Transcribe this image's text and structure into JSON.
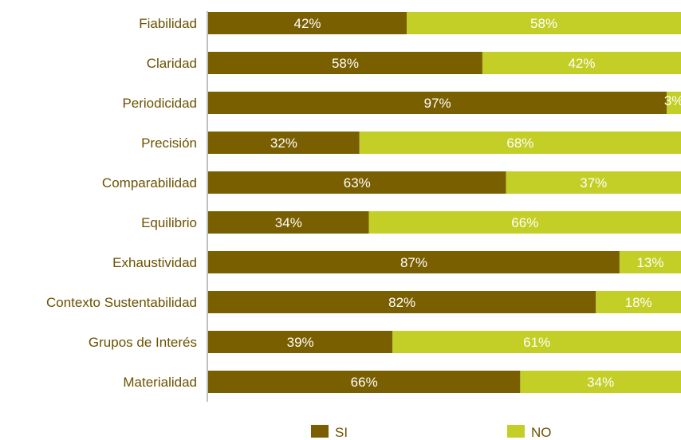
{
  "chart_data": {
    "type": "bar",
    "orientation": "horizontal",
    "stacked": true,
    "percent_stacked": true,
    "categories": [
      "Fiabilidad",
      "Claridad",
      "Periodicidad",
      "Precisión",
      "Comparabilidad",
      "Equilibrio",
      "Exhaustividad",
      "Contexto Sustentabilidad",
      "Grupos de Interés",
      "Materialidad"
    ],
    "series": [
      {
        "name": "SI",
        "color": "#7a5f00",
        "values": [
          42,
          58,
          97,
          32,
          63,
          34,
          87,
          82,
          39,
          66
        ],
        "labels": [
          "42%",
          "58%",
          "97%",
          "32%",
          "63%",
          "34%",
          "87%",
          "82%",
          "39%",
          "66%"
        ]
      },
      {
        "name": "NO",
        "color": "#c3cf26",
        "values": [
          58,
          42,
          3,
          68,
          37,
          66,
          13,
          18,
          61,
          34
        ],
        "labels": [
          "58%",
          "42%",
          "3%",
          "68%",
          "37%",
          "66%",
          "13%",
          "18%",
          "61%",
          "34%"
        ]
      }
    ],
    "xlim": [
      0,
      100
    ],
    "grid": false,
    "legend_position": "bottom"
  }
}
